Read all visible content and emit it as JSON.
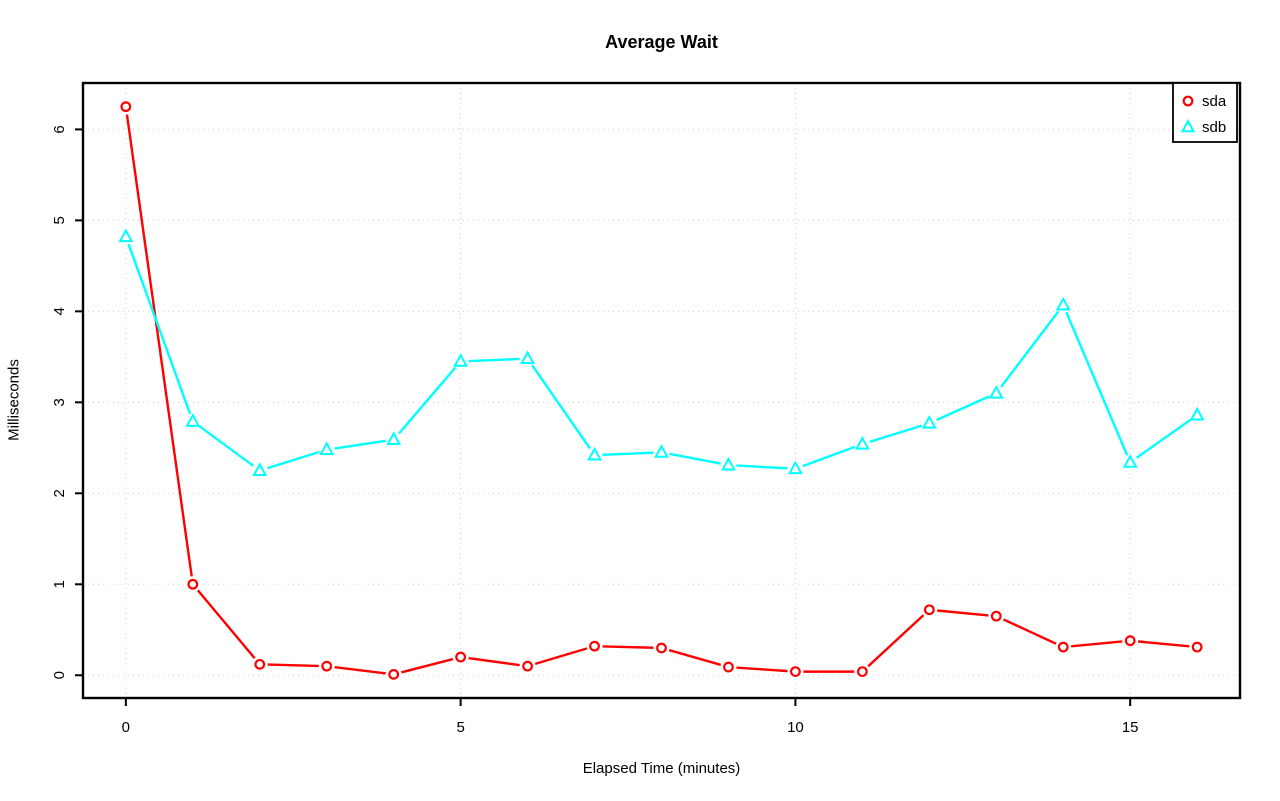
{
  "chart_data": {
    "type": "line",
    "title": "Average Wait",
    "xlabel": "Elapsed Time (minutes)",
    "ylabel": "Milliseconds",
    "x": [
      0,
      1,
      2,
      3,
      4,
      5,
      6,
      7,
      8,
      9,
      10,
      11,
      12,
      13,
      14,
      15,
      16
    ],
    "series": [
      {
        "name": "sda",
        "color": "#ff0000",
        "marker": "circle",
        "values": [
          6.25,
          1.0,
          0.12,
          0.1,
          0.01,
          0.2,
          0.1,
          0.32,
          0.3,
          0.09,
          0.04,
          0.04,
          0.72,
          0.65,
          0.31,
          0.38,
          0.31
        ]
      },
      {
        "name": "sdb",
        "color": "#00ffff",
        "marker": "triangle",
        "values": [
          4.82,
          2.79,
          2.25,
          2.48,
          2.59,
          3.45,
          3.48,
          2.42,
          2.45,
          2.31,
          2.27,
          2.54,
          2.77,
          3.1,
          4.07,
          2.34,
          2.86
        ]
      }
    ],
    "xlim": [
      -0.64,
      16.64
    ],
    "ylim": [
      -0.25,
      6.51
    ],
    "x_ticks": [
      0,
      5,
      10,
      15
    ],
    "y_ticks": [
      0,
      1,
      2,
      3,
      4,
      5,
      6
    ],
    "grid": true,
    "grid_style": "dotted",
    "grid_color": "#cfcfcf",
    "frame_color": "#000000",
    "legend_position": "top-right",
    "legend": [
      "sda",
      "sdb"
    ]
  }
}
